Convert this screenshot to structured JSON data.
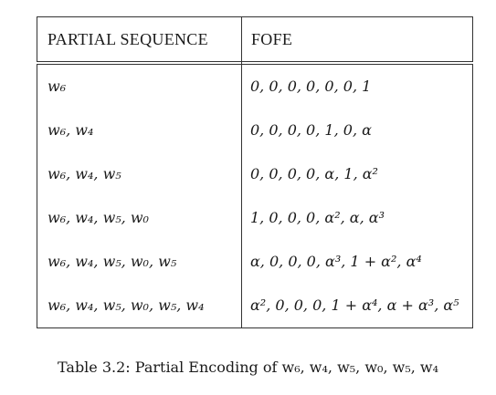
{
  "table": {
    "headers": {
      "sequence": "PARTIAL SEQUENCE",
      "fofe": "FOFE"
    },
    "rows": [
      {
        "sequence": "w₆",
        "fofe": "0, 0, 0, 0, 0, 0, 1"
      },
      {
        "sequence": "w₆, w₄",
        "fofe": "0, 0, 0, 0, 1, 0, α"
      },
      {
        "sequence": "w₆, w₄, w₅",
        "fofe": "0, 0, 0, 0, α, 1, α²"
      },
      {
        "sequence": "w₆, w₄, w₅, w₀",
        "fofe": "1, 0, 0, 0, α², α, α³"
      },
      {
        "sequence": "w₆, w₄, w₅, w₀, w₅",
        "fofe": "α, 0, 0, 0, α³, 1 + α², α⁴"
      },
      {
        "sequence": "w₆, w₄, w₅, w₀, w₅, w₄",
        "fofe": "α², 0, 0, 0, 1 + α⁴, α + α³, α⁵"
      }
    ]
  },
  "caption": "Table 3.2: Partial Encoding of w₆, w₄, w₅, w₀, w₅, w₄"
}
